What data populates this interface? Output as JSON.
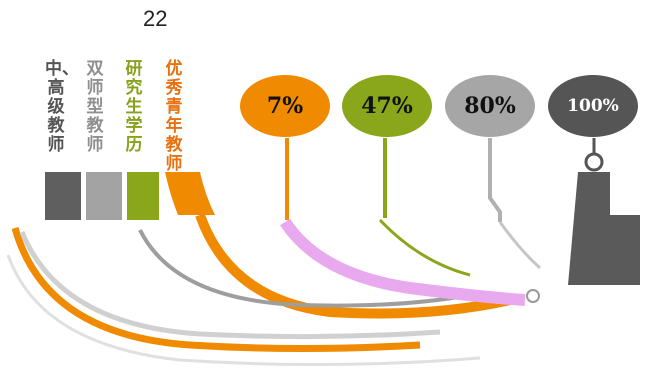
{
  "page": {
    "number": "22"
  },
  "colors": {
    "dark_gray": "#5f5f5f",
    "gray": "#9e9e9e",
    "green": "#8aa61a",
    "orange": "#f08a00",
    "light_gray": "#a6a6a6",
    "dark": "#555555",
    "magenta": "#e9a9ee"
  },
  "categories": [
    {
      "label": "中、高级教师",
      "color": "#555555"
    },
    {
      "label": "双师型教师",
      "color": "#8f8f8f"
    },
    {
      "label": "研究生学历",
      "color": "#86a11b"
    },
    {
      "label": "优秀青年教师",
      "color": "#e7700f"
    }
  ],
  "percentages": [
    {
      "value": "7%",
      "color": "#f08a00"
    },
    {
      "value": "47%",
      "color": "#8aa61a"
    },
    {
      "value": "80%",
      "color": "#a6a6a6"
    },
    {
      "value": "100%",
      "color": "#555555"
    }
  ]
}
